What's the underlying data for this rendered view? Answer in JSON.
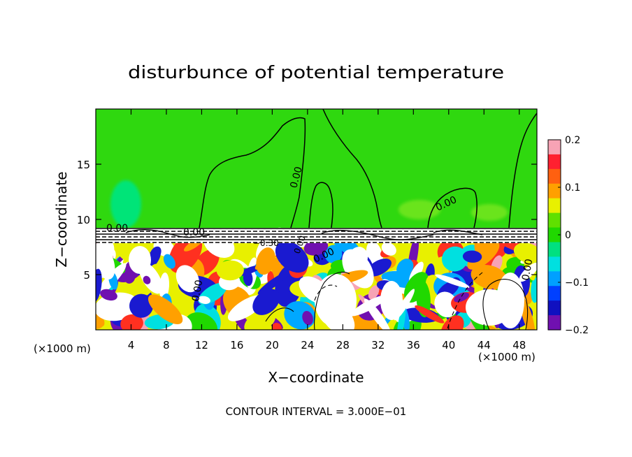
{
  "chart_data": {
    "type": "heatmap",
    "title": "disturbunce of potential temperature",
    "xlabel": "X−coordinate",
    "ylabel": "Z−coordinate",
    "x_unit_left": "(×1000 m)",
    "x_unit_right": "(×1000 m)",
    "xlim": [
      0,
      50
    ],
    "ylim": [
      0,
      20
    ],
    "x_ticks": [
      "4",
      "8",
      "12",
      "16",
      "20",
      "24",
      "28",
      "32",
      "36",
      "40",
      "44",
      "48"
    ],
    "y_ticks": [
      "5",
      "10",
      "15"
    ],
    "colorbar": {
      "range": [
        -0.2,
        0.2
      ],
      "tick_labels": [
        "0.2",
        "0.1",
        "0",
        "−0.1",
        "−0.2"
      ],
      "colors": [
        "#f7a3b5",
        "#ff2030",
        "#ff6010",
        "#ffa000",
        "#e8f000",
        "#60e000",
        "#20d800",
        "#00e080",
        "#00e0e0",
        "#00a0ff",
        "#0040ff",
        "#1010c0",
        "#7010b0"
      ]
    },
    "contour_labels": [
      "0.00",
      "0.00",
      "0.00",
      "0.00",
      "0.00",
      "0.00",
      "0.00",
      "−0.30",
      "0.00"
    ],
    "footer": "CONTOUR INTERVAL = 3.000E−01",
    "grid": false,
    "legend": "colorbar-right"
  }
}
